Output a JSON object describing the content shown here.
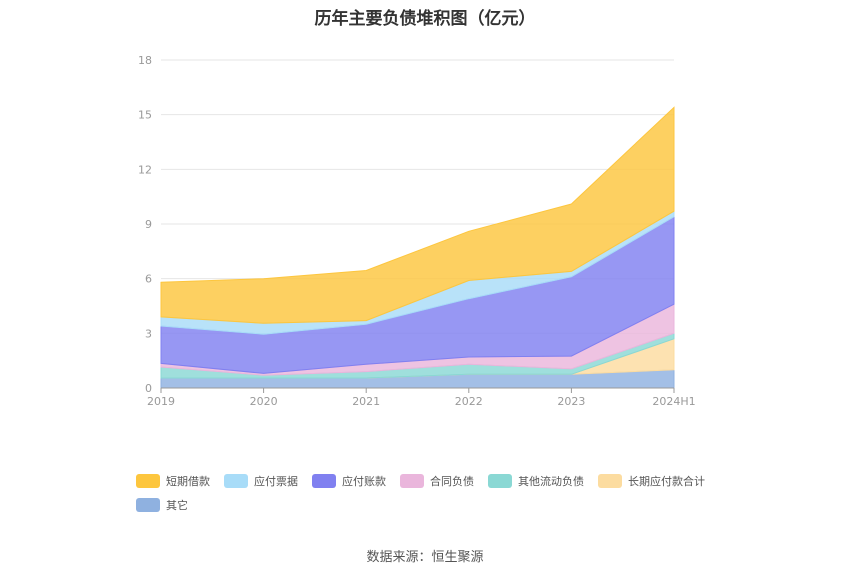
{
  "chart_data": {
    "type": "area",
    "stacked": true,
    "title": "历年主要负债堆积图（亿元）",
    "categories": [
      "2019",
      "2020",
      "2021",
      "2022",
      "2023",
      "2024H1"
    ],
    "ylim": [
      0,
      18
    ],
    "yticks": [
      0,
      3,
      6,
      9,
      12,
      15,
      18
    ],
    "grid": true,
    "legend_position": "bottom",
    "series": [
      {
        "name": "其它",
        "color": "#8fb1e0",
        "values": [
          0.55,
          0.55,
          0.55,
          0.75,
          0.75,
          1.0
        ]
      },
      {
        "name": "长期应付款合计",
        "color": "#fcdca0",
        "values": [
          0.0,
          0.0,
          0.0,
          0.0,
          0.0,
          1.7
        ]
      },
      {
        "name": "其他流动负债",
        "color": "#8ad8d4",
        "values": [
          0.6,
          0.15,
          0.35,
          0.55,
          0.3,
          0.3
        ]
      },
      {
        "name": "合同负债",
        "color": "#eab6dc",
        "values": [
          0.2,
          0.1,
          0.4,
          0.4,
          0.7,
          1.6
        ]
      },
      {
        "name": "应付账款",
        "color": "#8080f0",
        "values": [
          2.05,
          2.15,
          2.2,
          3.2,
          4.35,
          4.8
        ]
      },
      {
        "name": "应付票据",
        "color": "#a8dcf8",
        "values": [
          0.5,
          0.6,
          0.2,
          1.0,
          0.3,
          0.3
        ]
      },
      {
        "name": "短期借款",
        "color": "#fdc63e",
        "values": [
          1.9,
          2.45,
          2.75,
          2.7,
          3.7,
          5.7
        ]
      }
    ],
    "legend_order": [
      "短期借款",
      "应付票据",
      "应付账款",
      "合同负债",
      "其他流动负债",
      "长期应付款合计",
      "其它"
    ]
  },
  "source": "数据来源：恒生聚源"
}
